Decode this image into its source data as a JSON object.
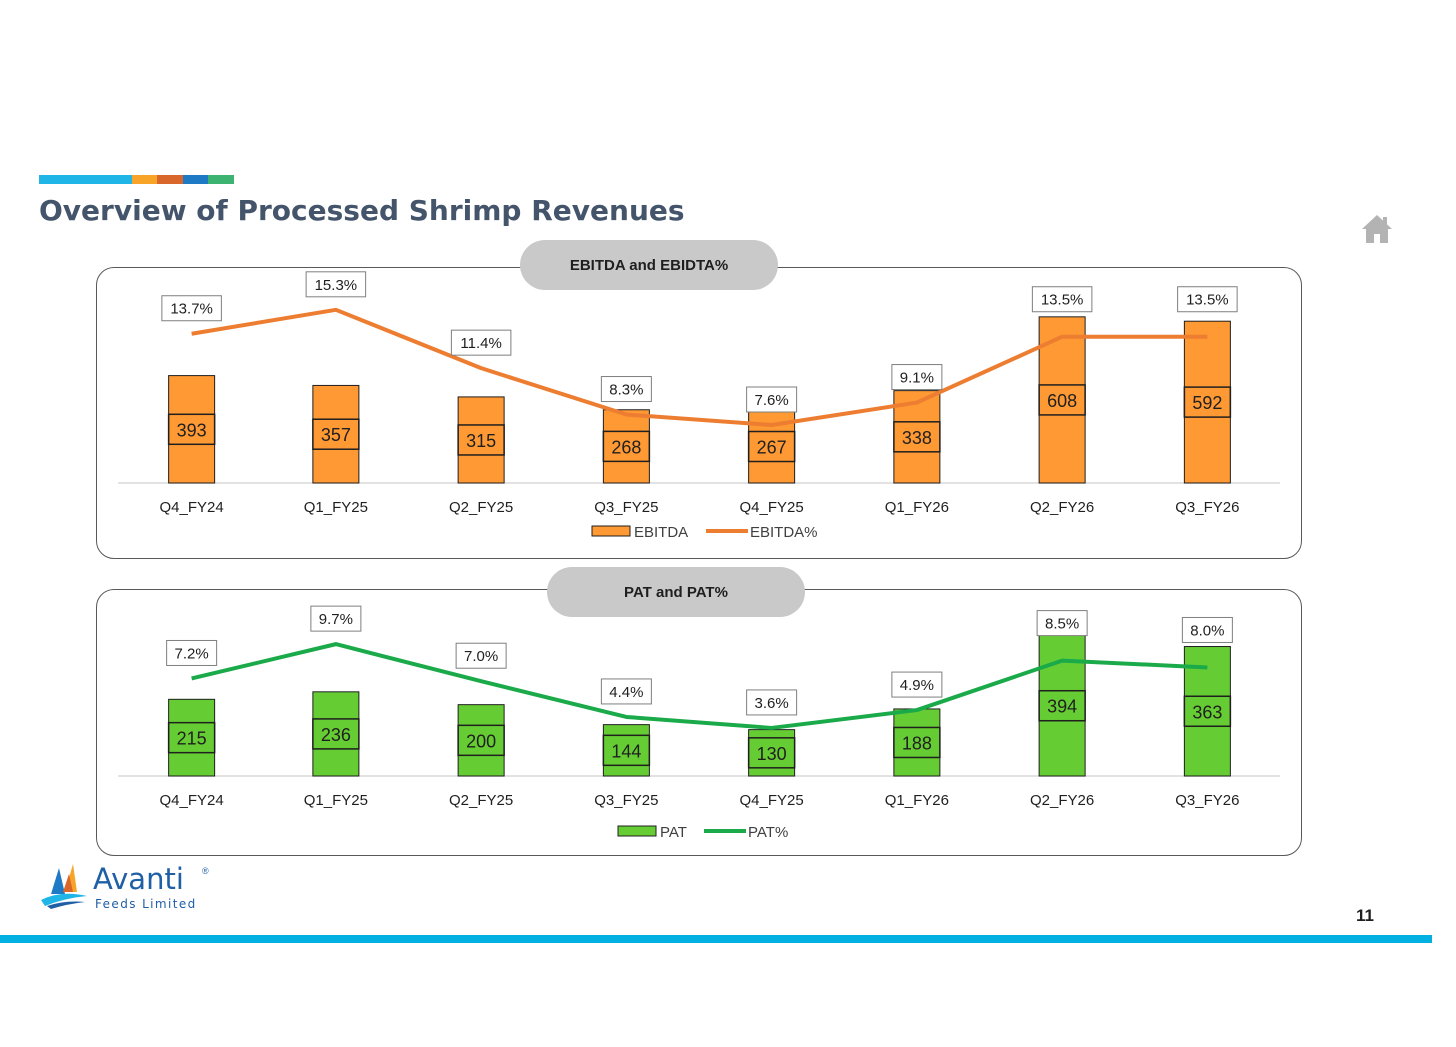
{
  "header": {
    "title": "Overview of Processed Shrimp Revenues",
    "accent_colors": [
      "#1fb5e6",
      "#f7a428",
      "#d9662b",
      "#1f7ac6",
      "#3cb371"
    ]
  },
  "chart_data": [
    {
      "type": "bar",
      "title": "EBITDA and EBIDTA%",
      "categories": [
        "Q4_FY24",
        "Q1_FY25",
        "Q2_FY25",
        "Q3_FY25",
        "Q4_FY25",
        "Q1_FY26",
        "Q2_FY26",
        "Q3_FY26"
      ],
      "series": [
        {
          "name": "EBITDA",
          "kind": "bar",
          "color": "#ff9933",
          "values": [
            393,
            357,
            315,
            268,
            267,
            338,
            608,
            592
          ]
        },
        {
          "name": "EBITDA%",
          "kind": "line",
          "color": "#ed7d31",
          "values": [
            13.7,
            15.3,
            11.4,
            8.3,
            7.6,
            9.1,
            13.5,
            13.5
          ],
          "labels": [
            "13.7%",
            "15.3%",
            "11.4%",
            "8.3%",
            "7.6%",
            "9.1%",
            "13.5%",
            "13.5%"
          ]
        }
      ],
      "legend_position": "bottom"
    },
    {
      "type": "bar",
      "title": "PAT and PAT%",
      "categories": [
        "Q4_FY24",
        "Q1_FY25",
        "Q2_FY25",
        "Q3_FY25",
        "Q4_FY25",
        "Q1_FY26",
        "Q2_FY26",
        "Q3_FY26"
      ],
      "series": [
        {
          "name": "PAT",
          "kind": "bar",
          "color": "#66cc33",
          "values": [
            215,
            236,
            200,
            144,
            130,
            188,
            394,
            363
          ]
        },
        {
          "name": "PAT%",
          "kind": "line",
          "color": "#1aaa4a",
          "values": [
            7.2,
            9.7,
            7.0,
            4.4,
            3.6,
            4.9,
            8.5,
            8.0
          ],
          "labels": [
            "7.2%",
            "9.7%",
            "7.0%",
            "4.4%",
            "3.6%",
            "4.9%",
            "8.5%",
            "8.0%"
          ]
        }
      ],
      "legend_position": "bottom"
    }
  ],
  "footer": {
    "logo_name": "Avanti",
    "logo_registered": "®",
    "logo_subtitle": "Feeds Limited",
    "page_number": "11"
  },
  "icons": {
    "home": "home-icon",
    "logo": "avanti-logo-icon"
  }
}
